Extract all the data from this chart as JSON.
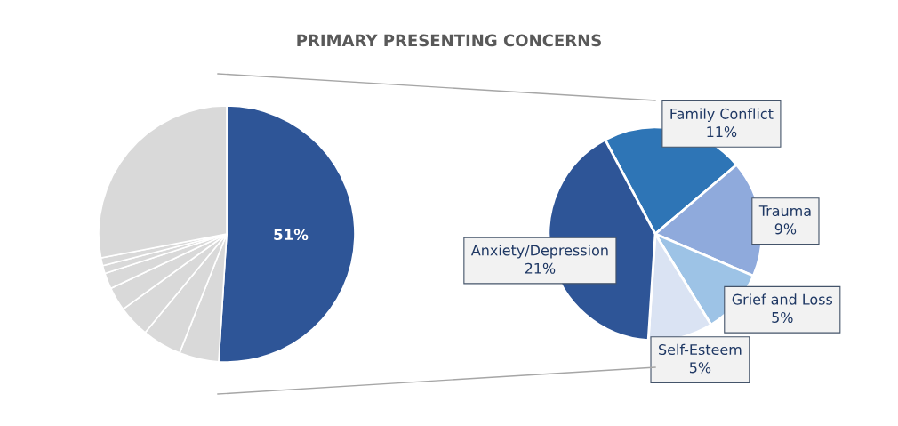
{
  "chart_data": [
    {
      "type": "pie",
      "title": "PRIMARY PRESENTING CONCERNS",
      "categories": [
        null,
        null,
        null,
        null,
        null,
        null,
        null,
        null,
        null
      ],
      "values": [
        51,
        5,
        5,
        4,
        3,
        2,
        1,
        1,
        28
      ],
      "colors": [
        "#2e5597",
        "#d9d9d9",
        "#d9d9d9",
        "#d9d9d9",
        "#d9d9d9",
        "#d9d9d9",
        "#d9d9d9",
        "#d9d9d9",
        "#d9d9d9"
      ],
      "value_labels": [
        "51%",
        null,
        null,
        null,
        null,
        null,
        null,
        null,
        null
      ]
    },
    {
      "type": "pie",
      "categories": [
        "Family Conflict",
        "Trauma",
        "Grief and Loss",
        "Self-Esteem",
        "Anxiety/Depression"
      ],
      "values": [
        11,
        9,
        5,
        5,
        21
      ],
      "colors": [
        "#2e75b6",
        "#8faadc",
        "#9dc3e6",
        "#dae3f3",
        "#2e5597"
      ],
      "value_labels": [
        "11%",
        "9%",
        "5%",
        "5%",
        "21%"
      ]
    }
  ]
}
